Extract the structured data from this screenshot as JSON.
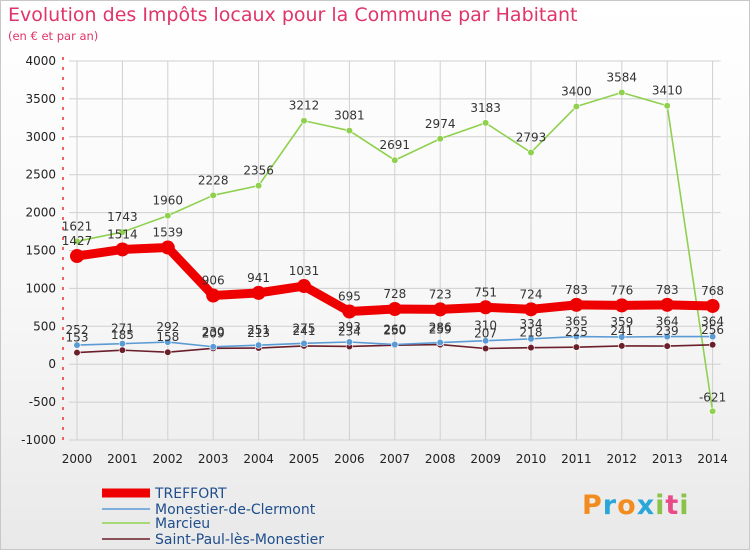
{
  "title": "Evolution des Impôts locaux pour la Commune par Habitant",
  "subtitle": "(en € et par an)",
  "logo_text": "Proxiti",
  "colors": {
    "title": "#e0346a",
    "grid": "#d0d0d0",
    "axis_text": "#222222",
    "logo": [
      "#f28c1e",
      "#2aa7d8",
      "#f28c1e",
      "#2aa7d8",
      "#8bc34a",
      "#e94a8a",
      "#8bc34a"
    ]
  },
  "chart_data": {
    "type": "line",
    "x": [
      "2000",
      "2001",
      "2002",
      "2003",
      "2004",
      "2005",
      "2006",
      "2007",
      "2008",
      "2009",
      "2010",
      "2011",
      "2012",
      "2013",
      "2014"
    ],
    "y_ticks": [
      "4000",
      "3500",
      "3000",
      "2500",
      "2000",
      "1500",
      "1000",
      "500",
      "0",
      "-500",
      "-1000"
    ],
    "ylim": [
      -1000,
      4000
    ],
    "grid": true,
    "legend_position": "bottom-left",
    "series": [
      {
        "name": "TREFFORT",
        "color": "#ee0000",
        "values": [
          1427,
          1514,
          1539,
          906,
          941,
          1031,
          695,
          728,
          723,
          751,
          724,
          783,
          776,
          783,
          768
        ],
        "labels": [
          "1427",
          "1514",
          "1539",
          "906",
          "941",
          "1031",
          "695",
          "728",
          "723",
          "751",
          "724",
          "783",
          "776",
          "783",
          "768"
        ]
      },
      {
        "name": "Monestier-de-Clermont",
        "color": "#5b9bd5",
        "values": [
          252,
          271,
          292,
          230,
          251,
          275,
          293,
          260,
          286,
          310,
          334,
          365,
          359,
          364,
          364
        ],
        "labels": [
          "252",
          "271",
          "292",
          "230",
          "251",
          "275",
          "293",
          "260",
          "286",
          "310",
          "334",
          "365",
          "359",
          "364",
          "364"
        ]
      },
      {
        "name": "Marcieu",
        "color": "#8fd14f",
        "values": [
          1621,
          1743,
          1960,
          2228,
          2356,
          3212,
          3081,
          2691,
          2974,
          3183,
          2793,
          3400,
          3584,
          3410,
          -621
        ],
        "labels": [
          "1621",
          "1743",
          "1960",
          "2228",
          "2356",
          "3212",
          "3081",
          "2691",
          "2974",
          "3183",
          "2793",
          "3400",
          "3584",
          "3410",
          "-621"
        ]
      },
      {
        "name": "Saint-Paul-lès-Monestier",
        "color": "#6b1f2a",
        "values": [
          153,
          185,
          158,
          209,
          213,
          241,
          234,
          250,
          259,
          207,
          218,
          225,
          241,
          239,
          256
        ],
        "labels": [
          "153",
          "185",
          "158",
          "209",
          "213",
          "241",
          "234",
          "250",
          "259",
          "207",
          "218",
          "225",
          "241",
          "239",
          "256"
        ]
      }
    ]
  }
}
